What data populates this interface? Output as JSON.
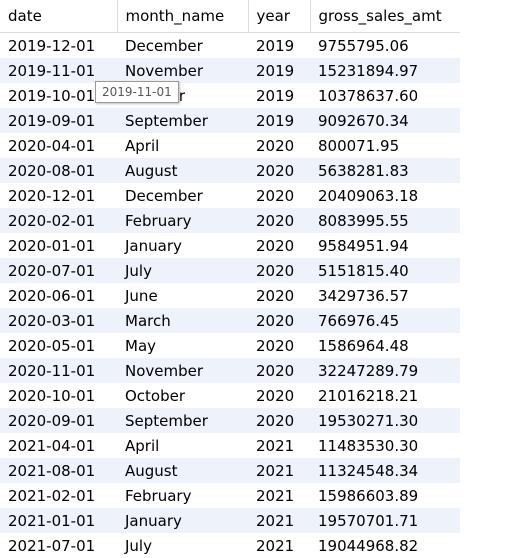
{
  "grid": {
    "columns": [
      "date",
      "month_name",
      "year",
      "gross_sales_amt"
    ],
    "rows": [
      [
        "2019-12-01",
        "December",
        "2019",
        "9755795.06"
      ],
      [
        "2019-11-01",
        "November",
        "2019",
        "15231894.97"
      ],
      [
        "2019-10-01",
        "October",
        "2019",
        "10378637.60"
      ],
      [
        "2019-09-01",
        "September",
        "2019",
        "9092670.34"
      ],
      [
        "2020-04-01",
        "April",
        "2020",
        "800071.95"
      ],
      [
        "2020-08-01",
        "August",
        "2020",
        "5638281.83"
      ],
      [
        "2020-12-01",
        "December",
        "2020",
        "20409063.18"
      ],
      [
        "2020-02-01",
        "February",
        "2020",
        "8083995.55"
      ],
      [
        "2020-01-01",
        "January",
        "2020",
        "9584951.94"
      ],
      [
        "2020-07-01",
        "July",
        "2020",
        "5151815.40"
      ],
      [
        "2020-06-01",
        "June",
        "2020",
        "3429736.57"
      ],
      [
        "2020-03-01",
        "March",
        "2020",
        "766976.45"
      ],
      [
        "2020-05-01",
        "May",
        "2020",
        "1586964.48"
      ],
      [
        "2020-11-01",
        "November",
        "2020",
        "32247289.79"
      ],
      [
        "2020-10-01",
        "October",
        "2020",
        "21016218.21"
      ],
      [
        "2020-09-01",
        "September",
        "2020",
        "19530271.30"
      ],
      [
        "2021-04-01",
        "April",
        "2021",
        "11483530.30"
      ],
      [
        "2021-08-01",
        "August",
        "2021",
        "11324548.34"
      ],
      [
        "2021-02-01",
        "February",
        "2021",
        "15986603.89"
      ],
      [
        "2021-01-01",
        "January",
        "2021",
        "19570701.71"
      ],
      [
        "2021-07-01",
        "July",
        "2021",
        "19044968.82"
      ]
    ]
  },
  "tooltip": {
    "text": "2019-11-01"
  },
  "colors": {
    "header_background": "#ffffff",
    "row_stripe": "#edf2fb",
    "gridline": "#dcdcdc",
    "tooltip_border": "#9a9a9a"
  }
}
